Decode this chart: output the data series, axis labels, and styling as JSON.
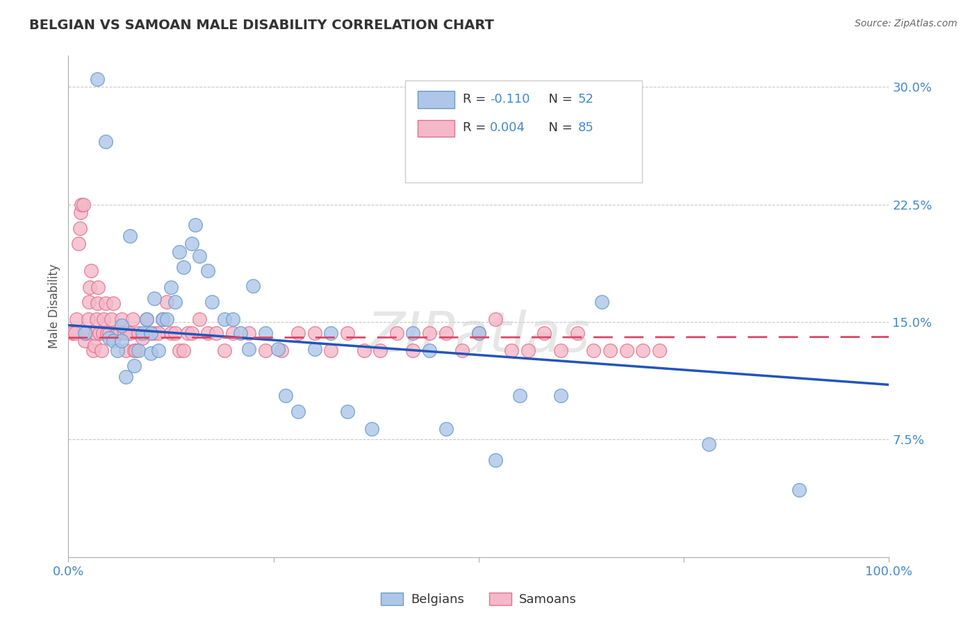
{
  "title": "BELGIAN VS SAMOAN MALE DISABILITY CORRELATION CHART",
  "source": "Source: ZipAtlas.com",
  "ylabel": "Male Disability",
  "xlim": [
    0.0,
    1.0
  ],
  "ylim": [
    0.0,
    0.32
  ],
  "yticks": [
    0.075,
    0.15,
    0.225,
    0.3
  ],
  "ytick_labels": [
    "7.5%",
    "15.0%",
    "22.5%",
    "30.0%"
  ],
  "grid_color": "#c8c8c8",
  "belgian_color": "#aec6e8",
  "belgian_edge_color": "#6699cc",
  "samoan_color": "#f5b8c8",
  "samoan_edge_color": "#e07090",
  "belgian_line_color": "#2255bb",
  "samoan_line_color": "#dd4466",
  "watermark": "ZIPatlas",
  "belgians_label": "Belgians",
  "samoans_label": "Samoans",
  "belgian_R": "-0.110",
  "belgian_N": "52",
  "samoan_R": "0.004",
  "samoan_N": "85",
  "belgian_intercept": 0.148,
  "belgian_slope": -0.038,
  "samoan_intercept": 0.14,
  "samoan_slope": 0.0005,
  "belgian_x": [
    0.02,
    0.035,
    0.045,
    0.05,
    0.055,
    0.06,
    0.065,
    0.065,
    0.07,
    0.075,
    0.08,
    0.085,
    0.09,
    0.095,
    0.1,
    0.1,
    0.105,
    0.11,
    0.115,
    0.12,
    0.125,
    0.13,
    0.135,
    0.14,
    0.15,
    0.155,
    0.16,
    0.17,
    0.175,
    0.19,
    0.2,
    0.21,
    0.22,
    0.225,
    0.24,
    0.255,
    0.265,
    0.28,
    0.3,
    0.32,
    0.34,
    0.37,
    0.42,
    0.44,
    0.46,
    0.5,
    0.52,
    0.55,
    0.6,
    0.65,
    0.78,
    0.89
  ],
  "belgian_y": [
    0.143,
    0.305,
    0.265,
    0.14,
    0.138,
    0.132,
    0.138,
    0.148,
    0.115,
    0.205,
    0.122,
    0.132,
    0.143,
    0.152,
    0.13,
    0.143,
    0.165,
    0.132,
    0.152,
    0.152,
    0.172,
    0.163,
    0.195,
    0.185,
    0.2,
    0.212,
    0.192,
    0.183,
    0.163,
    0.152,
    0.152,
    0.143,
    0.133,
    0.173,
    0.143,
    0.133,
    0.103,
    0.093,
    0.133,
    0.143,
    0.093,
    0.082,
    0.143,
    0.132,
    0.082,
    0.143,
    0.062,
    0.103,
    0.103,
    0.163,
    0.072,
    0.043
  ],
  "samoan_x": [
    0.005,
    0.008,
    0.01,
    0.012,
    0.014,
    0.015,
    0.016,
    0.018,
    0.02,
    0.022,
    0.024,
    0.025,
    0.026,
    0.028,
    0.03,
    0.032,
    0.033,
    0.034,
    0.035,
    0.036,
    0.038,
    0.04,
    0.042,
    0.043,
    0.045,
    0.047,
    0.05,
    0.052,
    0.055,
    0.058,
    0.06,
    0.062,
    0.065,
    0.068,
    0.07,
    0.072,
    0.075,
    0.078,
    0.08,
    0.082,
    0.085,
    0.09,
    0.095,
    0.1,
    0.105,
    0.11,
    0.115,
    0.12,
    0.125,
    0.13,
    0.135,
    0.14,
    0.145,
    0.15,
    0.16,
    0.17,
    0.18,
    0.19,
    0.2,
    0.22,
    0.24,
    0.26,
    0.28,
    0.3,
    0.32,
    0.34,
    0.36,
    0.38,
    0.4,
    0.42,
    0.44,
    0.46,
    0.48,
    0.5,
    0.52,
    0.54,
    0.56,
    0.58,
    0.6,
    0.62,
    0.64,
    0.66,
    0.68,
    0.7,
    0.72
  ],
  "samoan_y": [
    0.143,
    0.143,
    0.152,
    0.2,
    0.21,
    0.22,
    0.225,
    0.225,
    0.138,
    0.143,
    0.152,
    0.163,
    0.172,
    0.183,
    0.132,
    0.135,
    0.143,
    0.152,
    0.162,
    0.172,
    0.143,
    0.132,
    0.143,
    0.152,
    0.162,
    0.143,
    0.143,
    0.152,
    0.162,
    0.143,
    0.143,
    0.143,
    0.152,
    0.143,
    0.132,
    0.143,
    0.143,
    0.152,
    0.132,
    0.132,
    0.143,
    0.14,
    0.152,
    0.143,
    0.143,
    0.143,
    0.152,
    0.163,
    0.143,
    0.143,
    0.132,
    0.132,
    0.143,
    0.143,
    0.152,
    0.143,
    0.143,
    0.132,
    0.143,
    0.143,
    0.132,
    0.132,
    0.143,
    0.143,
    0.132,
    0.143,
    0.132,
    0.132,
    0.143,
    0.132,
    0.143,
    0.143,
    0.132,
    0.143,
    0.152,
    0.132,
    0.132,
    0.143,
    0.132,
    0.143,
    0.132,
    0.132,
    0.132,
    0.132,
    0.132
  ]
}
